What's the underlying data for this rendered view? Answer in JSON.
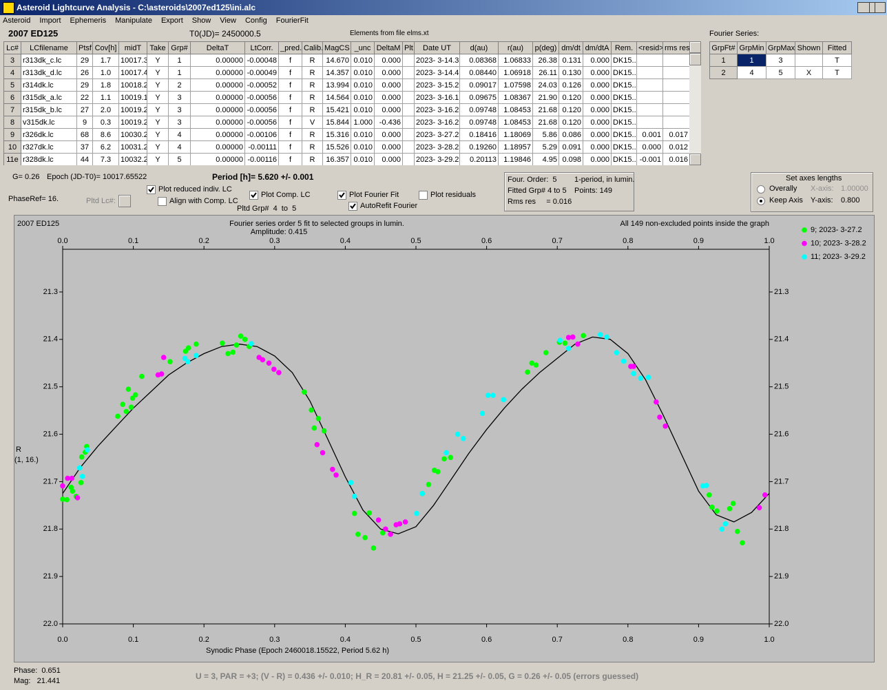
{
  "window": {
    "title": "Asteroid Lightcurve Analysis - C:\\asteroids\\2007ed125\\ini.alc"
  },
  "menu": [
    "Asteroid",
    "Import",
    "Ephemeris",
    "Manipulate",
    "Export",
    "Show",
    "View",
    "Config",
    "FourierFit"
  ],
  "header": {
    "object": "2007 ED125",
    "t0": "T0(JD)= 2450000.5",
    "elements": "Elements from file elms.xt",
    "fourier_label": "Fourier Series:"
  },
  "table": {
    "columns": [
      "Lc#",
      "LCfilename",
      "Ptsf",
      "Cov[h]",
      "midT",
      "Take",
      "Grp#",
      "DeltaT",
      "LtCorr.",
      "_pred.",
      "Calib.",
      "MagCS",
      "_unc",
      "DeltaM",
      "Plt",
      "Date UT",
      "d(au)",
      "r(au)",
      "p(deg)",
      "dm/dt",
      "dm/dtA",
      "Rem.",
      "<resid>",
      "rms res"
    ],
    "rows": [
      [
        "3",
        "r313dk_c.lc",
        "29",
        "1.7",
        "10017.3",
        "Y",
        "1",
        "0.00000",
        "-0.00048",
        "f",
        "R",
        "14.670",
        "0.010",
        "0.000",
        null,
        "2023- 3-14.3",
        "0.08368",
        "1.06833",
        "26.38",
        "0.131",
        "0.000",
        "DK15..",
        null,
        null
      ],
      [
        "4",
        "r313dk_d.lc",
        "26",
        "1.0",
        "10017.4",
        "Y",
        "1",
        "0.00000",
        "-0.00049",
        "f",
        "R",
        "14.357",
        "0.010",
        "0.000",
        null,
        "2023- 3-14.4",
        "0.08440",
        "1.06918",
        "26.11",
        "0.130",
        "0.000",
        "DK15..",
        null,
        null
      ],
      [
        "5",
        "r314dk.lc",
        "29",
        "1.8",
        "10018.2",
        "Y",
        "2",
        "0.00000",
        "-0.00052",
        "f",
        "R",
        "13.994",
        "0.010",
        "0.000",
        null,
        "2023- 3-15.2",
        "0.09017",
        "1.07598",
        "24.03",
        "0.126",
        "0.000",
        "DK15..",
        null,
        null
      ],
      [
        "6",
        "r315dk_a.lc",
        "22",
        "1.1",
        "10019.1",
        "Y",
        "3",
        "0.00000",
        "-0.00056",
        "f",
        "R",
        "14.564",
        "0.010",
        "0.000",
        null,
        "2023- 3-16.1",
        "0.09675",
        "1.08367",
        "21.90",
        "0.120",
        "0.000",
        "DK15..",
        null,
        null
      ],
      [
        "7",
        "r315dk_b.lc",
        "27",
        "2.0",
        "10019.2",
        "Y",
        "3",
        "0.00000",
        "-0.00056",
        "f",
        "R",
        "15.421",
        "0.010",
        "0.000",
        null,
        "2023- 3-16.2",
        "0.09748",
        "1.08453",
        "21.68",
        "0.120",
        "0.000",
        "DK15..",
        null,
        null
      ],
      [
        "8",
        "v315dk.lc",
        "9",
        "0.3",
        "10019.2",
        "Y",
        "3",
        "0.00000",
        "-0.00056",
        "f",
        "V",
        "15.844",
        "1.000",
        "-0.436",
        null,
        "2023- 3-16.2",
        "0.09748",
        "1.08453",
        "21.68",
        "0.120",
        "0.000",
        "DK15..",
        null,
        null
      ],
      [
        "9",
        "r326dk.lc",
        "68",
        "8.6",
        "10030.2",
        "Y",
        "4",
        "0.00000",
        "-0.00106",
        "f",
        "R",
        "15.316",
        "0.010",
        "0.000",
        null,
        "2023- 3-27.2",
        "0.18416",
        "1.18069",
        "5.86",
        "0.086",
        "0.000",
        "DK15..",
        "0.001",
        "0.017"
      ],
      [
        "10",
        "r327dk.lc",
        "37",
        "6.2",
        "10031.2",
        "Y",
        "4",
        "0.00000",
        "-0.00111",
        "f",
        "R",
        "15.526",
        "0.010",
        "0.000",
        null,
        "2023- 3-28.2",
        "0.19260",
        "1.18957",
        "5.29",
        "0.091",
        "0.000",
        "DK15..",
        "0.000",
        "0.012"
      ],
      [
        "11e",
        "r328dk.lc",
        "44",
        "7.3",
        "10032.2",
        "Y",
        "5",
        "0.00000",
        "-0.00116",
        "f",
        "R",
        "16.357",
        "0.010",
        "0.000",
        null,
        "2023- 3-29.2",
        "0.20113",
        "1.19846",
        "4.95",
        "0.098",
        "0.000",
        "DK15..",
        "-0.001",
        "0.016"
      ]
    ]
  },
  "fourier_table": {
    "columns": [
      "GrpFt#",
      "GrpMin",
      "GrpMax",
      "Shown",
      "Fitted"
    ],
    "rows": [
      [
        "1",
        "1",
        "3",
        null,
        "T"
      ],
      [
        "2",
        "4",
        "5",
        "X",
        "T"
      ]
    ]
  },
  "info": {
    "g": "G= 0.26",
    "epoch": "Epoch (JD-T0)= 10017.65522",
    "period": "Period [h]= 5.620 +/- 0.001",
    "phaseref": "PhaseRef= 16.",
    "pltd_lc": "Pltd Lc#:",
    "pltd_grp": "Pltd Grp#  4  to  5"
  },
  "checkboxes": [
    {
      "label": "Plot reduced indiv. LC",
      "checked": true
    },
    {
      "label": "Align with Comp. LC",
      "checked": false
    },
    {
      "label": "Plot Comp. LC",
      "checked": true
    },
    {
      "label": "Plot Fourier Fit",
      "checked": true
    },
    {
      "label": "Plot residuals",
      "checked": false
    },
    {
      "label": "AutoRefit Fourier",
      "checked": true
    }
  ],
  "fit_box": [
    "Four. Order:  5",
    "1-period, in lumin.",
    "Fitted Grp# 4 to 5",
    "Points: 149",
    "Rms res     = 0.016"
  ],
  "axes_box": {
    "title": "Set axes lengths",
    "options": [
      {
        "label": "Overally",
        "selected": false
      },
      {
        "label": "Keep Axis",
        "selected": true
      }
    ],
    "x_axis_label": "X-axis:",
    "x_axis_value": "1.00000",
    "y_axis_label": "Y-axis:",
    "y_axis_value": "0.800"
  },
  "status": {
    "phase": "Phase:  0.651",
    "mag": "Mag:   21.441",
    "summary": "U = 3, PAR = +3; (V - R) = 0.436 +/- 0.010; H_R = 20.81 +/- 0.05, H = 21.25 +/- 0.05, G = 0.26 +/- 0.05 (errors guessed)"
  },
  "chart_data": {
    "type": "scatter",
    "title": "2007 ED125",
    "subtitle": "Fourier series order 5 fit to selected groups in lumin.",
    "annotation": "Amplitude: 0.415",
    "note": "All 149 non-excluded points inside the graph",
    "xlabel": "Synodic Phase (Epoch 2460018.15522, Period 5.62 h)",
    "ylabel": "R",
    "ylabel_note": "(1, 16.)",
    "xlim": [
      0,
      1
    ],
    "ylim": [
      21.21,
      22.0
    ],
    "y_inverted": true,
    "xticks": [
      {
        "value": 0,
        "label": "0.0"
      },
      0.1,
      0.2,
      0.3,
      0.4,
      0.5,
      0.6,
      0.7,
      0.8,
      0.9,
      {
        "value": 1,
        "label": "1.0"
      }
    ],
    "yticks": [
      21.3,
      21.4,
      21.5,
      21.6,
      21.7,
      21.8,
      21.9,
      {
        "value": 22,
        "label": "22.0"
      }
    ],
    "series": [
      {
        "name": "9; 2023- 3-27.2",
        "color": "#00ff00",
        "x": [
          0,
          0.006,
          0.012,
          0.014,
          0.019,
          0.026,
          0.027,
          0.032,
          0.034,
          0.078,
          0.085,
          0.09,
          0.093,
          0.097,
          0.099,
          0.103,
          0.112,
          0.152,
          0.174,
          0.178,
          0.189,
          0.226,
          0.234,
          0.241,
          0.246,
          0.252,
          0.258,
          0.264,
          0.342,
          0.352,
          0.356,
          0.362,
          0.37,
          0.413,
          0.418,
          0.428,
          0.434,
          0.44,
          0.453,
          0.509,
          0.518,
          0.526,
          0.531,
          0.54,
          0.549,
          0.658,
          0.664,
          0.67,
          0.684,
          0.703,
          0.711,
          0.737,
          0.915,
          0.919,
          0.926,
          0.944,
          0.949,
          0.955,
          0.962
        ],
        "values": [
          21.737,
          21.738,
          21.712,
          21.72,
          21.731,
          21.702,
          21.648,
          21.638,
          21.626,
          21.562,
          21.537,
          21.552,
          21.505,
          21.543,
          21.524,
          21.517,
          21.478,
          21.447,
          21.425,
          21.418,
          21.41,
          21.408,
          21.43,
          21.427,
          21.412,
          21.393,
          21.4,
          21.415,
          21.511,
          21.549,
          21.587,
          21.567,
          21.593,
          21.767,
          21.811,
          21.818,
          21.766,
          21.84,
          21.808,
          21.725,
          21.706,
          21.676,
          21.679,
          21.652,
          21.649,
          21.469,
          21.45,
          21.454,
          21.428,
          21.406,
          21.408,
          21.392,
          21.728,
          21.754,
          21.762,
          21.757,
          21.746,
          21.805,
          21.829
        ]
      },
      {
        "name": "10; 2023- 3-28.2",
        "color": "#ff00ff",
        "x": [
          0,
          0.007,
          0.013,
          0.021,
          0.135,
          0.14,
          0.143,
          0.278,
          0.283,
          0.292,
          0.299,
          0.306,
          0.36,
          0.368,
          0.382,
          0.387,
          0.447,
          0.457,
          0.464,
          0.472,
          0.477,
          0.485,
          0.716,
          0.722,
          0.729,
          0.804,
          0.808,
          0.84,
          0.845,
          0.853,
          0.986,
          0.994
        ],
        "values": [
          21.709,
          21.693,
          21.693,
          21.734,
          21.475,
          21.473,
          21.438,
          21.438,
          21.443,
          21.45,
          21.463,
          21.47,
          21.622,
          21.639,
          21.674,
          21.686,
          21.781,
          21.8,
          21.811,
          21.791,
          21.789,
          21.785,
          21.396,
          21.395,
          21.41,
          21.457,
          21.457,
          21.532,
          21.564,
          21.583,
          21.755,
          21.728
        ]
      },
      {
        "name": "11; 2023- 3-29.2",
        "color": "#00ffff",
        "x": [
          0.024,
          0.028,
          0.035,
          0.173,
          0.177,
          0.189,
          0.267,
          0.408,
          0.413,
          0.501,
          0.509,
          0.543,
          0.559,
          0.567,
          0.594,
          0.602,
          0.609,
          0.624,
          0.704,
          0.716,
          0.761,
          0.77,
          0.784,
          0.794,
          0.808,
          0.818,
          0.829,
          0.906,
          0.911,
          0.933,
          0.938
        ],
        "values": [
          21.671,
          21.689,
          21.633,
          21.44,
          21.447,
          21.434,
          21.409,
          21.702,
          21.731,
          21.767,
          21.725,
          21.639,
          21.6,
          21.609,
          21.556,
          21.518,
          21.518,
          21.527,
          21.402,
          21.419,
          21.39,
          21.395,
          21.428,
          21.446,
          21.472,
          21.482,
          21.48,
          21.709,
          21.708,
          21.8,
          21.789
        ]
      }
    ],
    "fit_curve": {
      "color": "#000000",
      "x": [
        0,
        0.025,
        0.05,
        0.075,
        0.1,
        0.125,
        0.15,
        0.175,
        0.2,
        0.225,
        0.25,
        0.275,
        0.3,
        0.325,
        0.35,
        0.375,
        0.4,
        0.425,
        0.45,
        0.475,
        0.5,
        0.525,
        0.55,
        0.575,
        0.6,
        0.625,
        0.65,
        0.675,
        0.7,
        0.725,
        0.75,
        0.775,
        0.8,
        0.825,
        0.85,
        0.875,
        0.9,
        0.925,
        0.95,
        0.975,
        1
      ],
      "values": [
        21.725,
        21.67,
        21.625,
        21.585,
        21.545,
        21.51,
        21.475,
        21.45,
        21.43,
        21.415,
        21.41,
        21.415,
        21.435,
        21.47,
        21.53,
        21.61,
        21.69,
        21.76,
        21.8,
        21.81,
        21.795,
        21.75,
        21.695,
        21.64,
        21.59,
        21.545,
        21.505,
        21.47,
        21.44,
        21.41,
        21.395,
        21.4,
        21.43,
        21.485,
        21.56,
        21.64,
        21.72,
        21.77,
        21.785,
        21.765,
        21.725
      ]
    }
  }
}
